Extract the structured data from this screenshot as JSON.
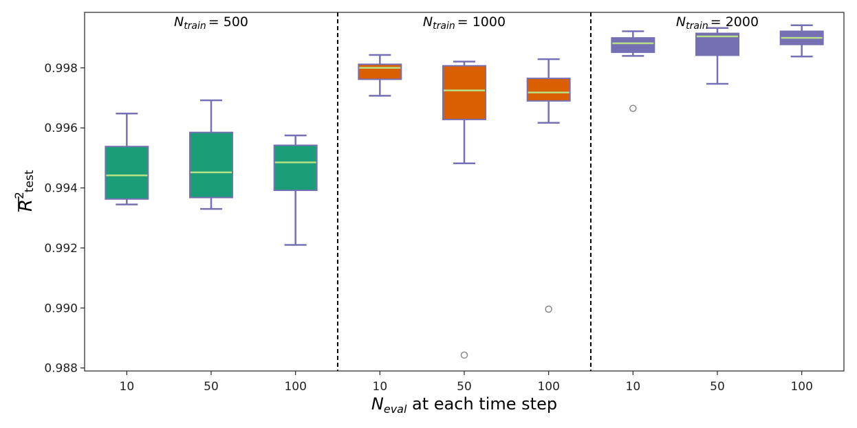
{
  "chart_data": {
    "type": "box",
    "xlabel": {
      "main": "N",
      "sub": "eval",
      "rest": " at each time step"
    },
    "ylabel": {
      "main": "R",
      "sup": "2",
      "sub": "test"
    },
    "ylim": [
      0.9879,
      0.99985
    ],
    "yticks": [
      0.988,
      0.99,
      0.992,
      0.994,
      0.996,
      0.998
    ],
    "ytick_labels": [
      "0.988",
      "0.990",
      "0.992",
      "0.994",
      "0.996",
      "0.998"
    ],
    "colors": {
      "median": "#b8e186",
      "whisker": "#7570b3",
      "outlier": "#888888",
      "divider": "#000000"
    },
    "groups": [
      {
        "title_main": "N",
        "title_sub": "train",
        "title_value": "= 500",
        "color": "#1b9e77",
        "boxes": [
          {
            "label": "10",
            "whislo": 0.99345,
            "q1": 0.99363,
            "med": 0.99442,
            "q3": 0.99538,
            "whishi": 0.99648,
            "fliers": []
          },
          {
            "label": "50",
            "whislo": 0.9933,
            "q1": 0.99368,
            "med": 0.99452,
            "q3": 0.99585,
            "whishi": 0.99692,
            "fliers": []
          },
          {
            "label": "100",
            "whislo": 0.9921,
            "q1": 0.99392,
            "med": 0.99485,
            "q3": 0.99542,
            "whishi": 0.99575,
            "fliers": []
          }
        ]
      },
      {
        "title_main": "N",
        "title_sub": "train",
        "title_value": "= 1000",
        "color": "#d95f02",
        "boxes": [
          {
            "label": "10",
            "whislo": 0.99707,
            "q1": 0.99762,
            "med": 0.998,
            "q3": 0.99812,
            "whishi": 0.99843,
            "fliers": []
          },
          {
            "label": "50",
            "whislo": 0.99482,
            "q1": 0.99628,
            "med": 0.99725,
            "q3": 0.99807,
            "whishi": 0.99821,
            "fliers": [
              0.98843
            ]
          },
          {
            "label": "100",
            "whislo": 0.99617,
            "q1": 0.9969,
            "med": 0.99718,
            "q3": 0.99765,
            "whishi": 0.99829,
            "fliers": [
              0.98996
            ]
          }
        ]
      },
      {
        "title_main": "N",
        "title_sub": "train",
        "title_value": "= 2000",
        "color": "#7570b3",
        "boxes": [
          {
            "label": "10",
            "whislo": 0.9984,
            "q1": 0.99852,
            "med": 0.99882,
            "q3": 0.999,
            "whishi": 0.99922,
            "fliers": [
              0.99665
            ]
          },
          {
            "label": "50",
            "whislo": 0.99747,
            "q1": 0.99842,
            "med": 0.99905,
            "q3": 0.99915,
            "whishi": 0.99933,
            "fliers": []
          },
          {
            "label": "100",
            "whislo": 0.99838,
            "q1": 0.99878,
            "med": 0.999,
            "q3": 0.99922,
            "whishi": 0.99942,
            "fliers": []
          }
        ]
      }
    ]
  }
}
